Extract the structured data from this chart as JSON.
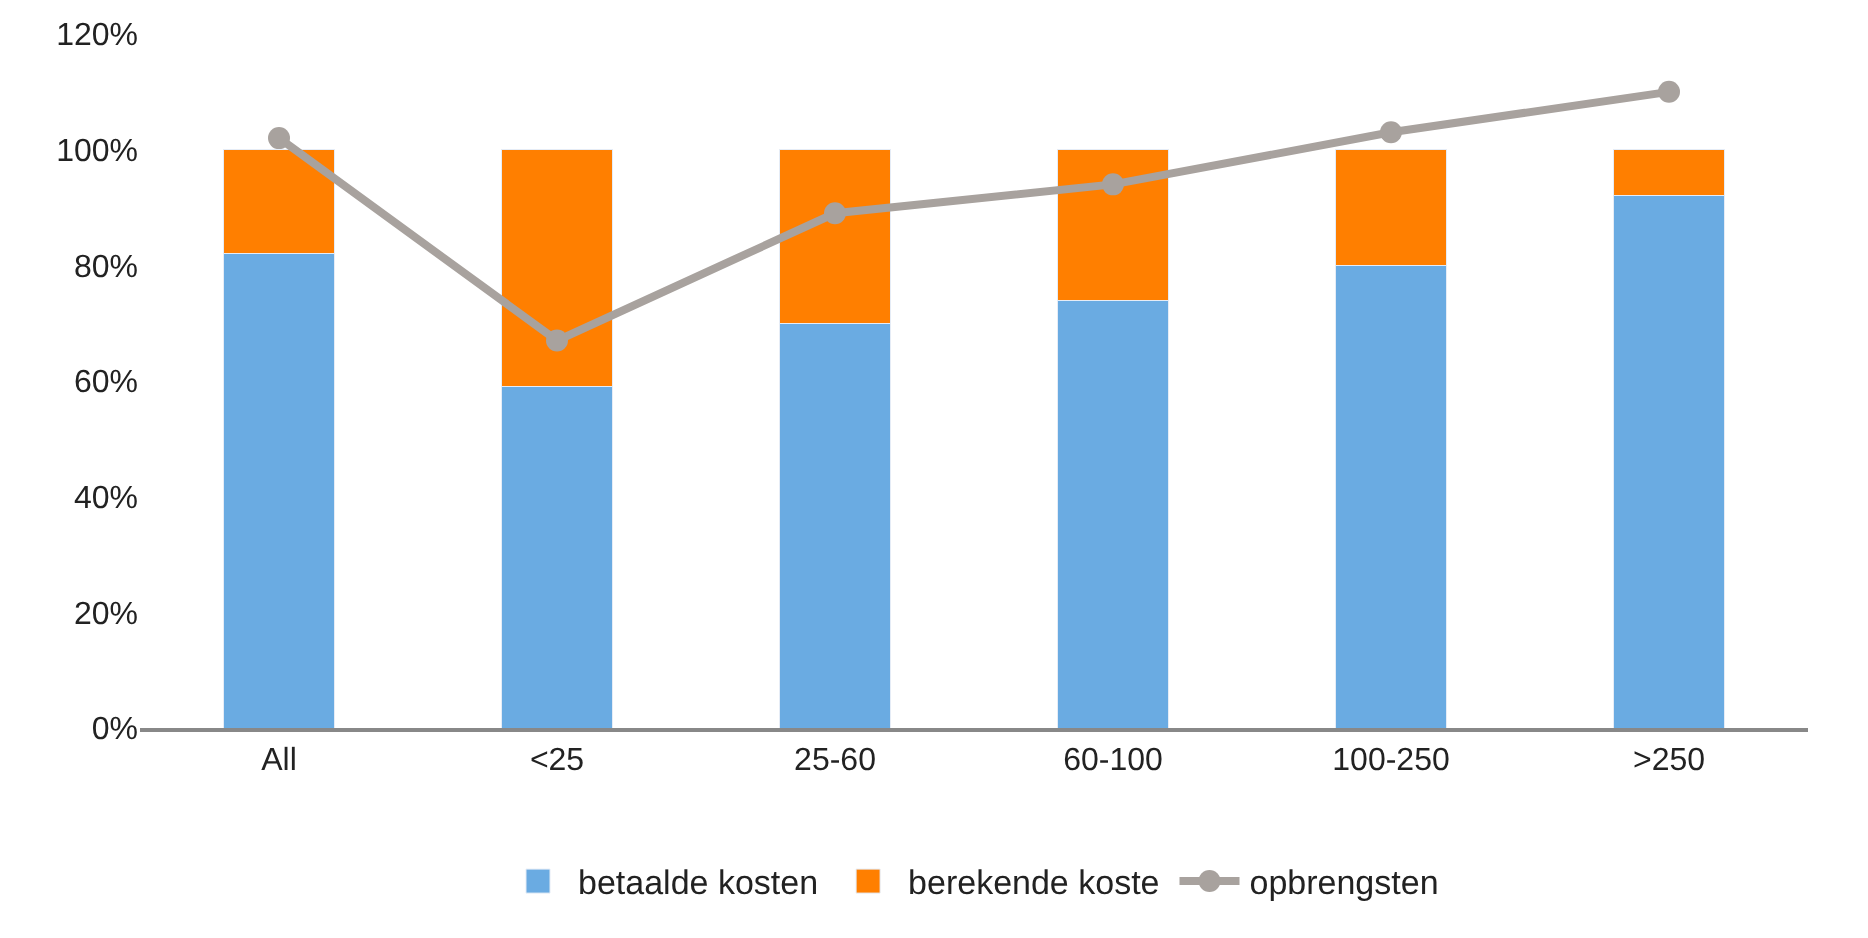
{
  "chart_data": {
    "type": "bar",
    "stacked": true,
    "categories": [
      "All",
      "<25",
      "25-60",
      "60-100",
      "100-250",
      ">250"
    ],
    "series": [
      {
        "name": "betaalde kosten",
        "color": "#6aabe2",
        "values": [
          82,
          59,
          70,
          74,
          80,
          92
        ]
      },
      {
        "name": "berekende koste",
        "color": "#ff7f00",
        "values": [
          18,
          41,
          30,
          26,
          20,
          8
        ]
      },
      {
        "name": "opbrengsten",
        "type": "line",
        "color": "#a8a29e",
        "marker": "circle",
        "values": [
          102,
          67,
          89,
          94,
          103,
          110
        ]
      }
    ],
    "ylim": [
      0,
      120
    ],
    "yticks": [
      {
        "value": 0,
        "label": "0%"
      },
      {
        "value": 20,
        "label": "20%"
      },
      {
        "value": 40,
        "label": "40%"
      },
      {
        "value": 60,
        "label": "60%"
      },
      {
        "value": 80,
        "label": "80%"
      },
      {
        "value": 100,
        "label": "100%"
      },
      {
        "value": 120,
        "label": "120%"
      }
    ],
    "legend": "bottom"
  }
}
